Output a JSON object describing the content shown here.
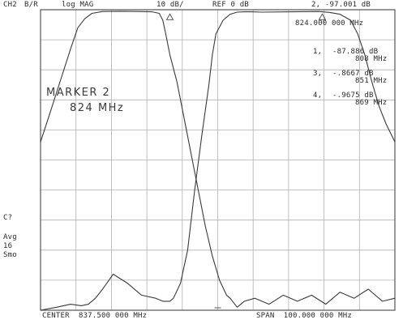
{
  "header": {
    "channel": "CH2",
    "measurement": "B/R",
    "format": "log MAG",
    "scale": "10 dB/",
    "reference": "REF 0 dB",
    "active_marker_readout": "2, -97.001 dB",
    "active_marker_freq": "824.000 000 MHz"
  },
  "marker_box": {
    "title": "MARKER 2",
    "freq": "824 MHz"
  },
  "marker_list": [
    {
      "label": "1,",
      "value": "-87.886 dB",
      "freq": "808 MHz"
    },
    {
      "label": "3,",
      "value": "-.8667 dB",
      "freq": "851 MHz"
    },
    {
      "label": "4,",
      "value": "-.9675 dB",
      "freq": "869 MHz"
    }
  ],
  "side_annotations": [
    "C?",
    "Avg",
    "16",
    "Smo"
  ],
  "footer": {
    "center": "CENTER  837.500 000 MHz",
    "span": "SPAN  100.000 000 MHz"
  },
  "trace_color": "#3a3a3a",
  "grid_color": "#b0b0b0",
  "chart_data": {
    "type": "line",
    "title": "",
    "xlabel": "",
    "ylabel": "",
    "x_unit": "MHz",
    "y_unit": "dB",
    "xlim": [
      787.5,
      887.5
    ],
    "ylim": [
      -100,
      0
    ],
    "grid": true,
    "x_divisions": 10,
    "y_divisions": 10,
    "series": [
      {
        "x": [
          787.5,
          792,
          796,
          799,
          801,
          803,
          805,
          808,
          812,
          816,
          820,
          822,
          824,
          825,
          827,
          829,
          831,
          833,
          835,
          836,
          837,
          839,
          841,
          843,
          845,
          847,
          850,
          858,
          866,
          869,
          872,
          875,
          877,
          879,
          881,
          883,
          885,
          887.5
        ],
        "y": [
          -100,
          -99,
          -98,
          -98.5,
          -98,
          -96,
          -93,
          -88,
          -91,
          -95,
          -96,
          -97,
          -97,
          -96,
          -91,
          -80,
          -60,
          -42,
          -25,
          -15,
          -8,
          -3.5,
          -1.5,
          -0.8,
          -0.7,
          -0.7,
          -0.8,
          -0.7,
          -0.6,
          -0.9,
          -1.5,
          -3.5,
          -8,
          -15,
          -24,
          -32,
          -38,
          -44
        ]
      },
      {
        "x": [
          787.5,
          790,
          793,
          796,
          798,
          800,
          802,
          805,
          810,
          815,
          819,
          821,
          822,
          823,
          824,
          826,
          828,
          830,
          832,
          834,
          836,
          838,
          840,
          841,
          843,
          845,
          848,
          852,
          856,
          860,
          864,
          868,
          872,
          876,
          880,
          884,
          887.5
        ],
        "y": [
          -44,
          -35,
          -24,
          -13,
          -6,
          -3,
          -1.2,
          -0.6,
          -0.5,
          -0.6,
          -0.7,
          -1.2,
          -3.5,
          -9,
          -15,
          -24,
          -36,
          -48,
          -60,
          -72,
          -82,
          -90,
          -95,
          -96,
          -99,
          -97,
          -96,
          -98,
          -95,
          -97,
          -95,
          -98,
          -94,
          -96,
          -93,
          -97,
          -96
        ]
      }
    ]
  }
}
